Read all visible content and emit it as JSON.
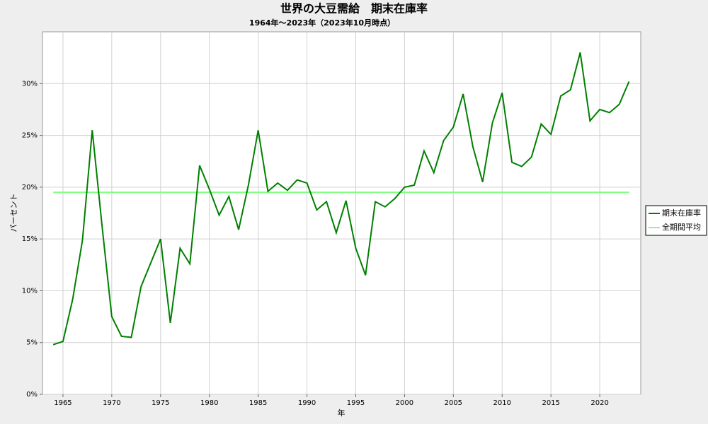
{
  "chart_data": {
    "type": "line",
    "title": "世界の大豆需給　期末在庫率",
    "subtitle": "1964年～2023年（2023年10月時点）",
    "x_label": "年",
    "y_label": "パーセント",
    "x": [
      1964,
      1965,
      1966,
      1967,
      1968,
      1969,
      1970,
      1971,
      1972,
      1973,
      1974,
      1975,
      1976,
      1977,
      1978,
      1979,
      1980,
      1981,
      1982,
      1983,
      1984,
      1985,
      1986,
      1987,
      1988,
      1989,
      1990,
      1991,
      1992,
      1993,
      1994,
      1995,
      1996,
      1997,
      1998,
      1999,
      2000,
      2001,
      2002,
      2003,
      2004,
      2005,
      2006,
      2007,
      2008,
      2009,
      2010,
      2011,
      2012,
      2013,
      2014,
      2015,
      2016,
      2017,
      2018,
      2019,
      2020,
      2021,
      2022,
      2023
    ],
    "series": [
      {
        "name": "期末在庫率",
        "color": "#008000",
        "width": 2,
        "values": [
          4.8,
          5.1,
          9.2,
          14.9,
          25.5,
          16.3,
          7.5,
          5.6,
          5.5,
          10.4,
          12.7,
          15.0,
          6.9,
          14.1,
          12.6,
          22.1,
          19.8,
          17.3,
          19.1,
          15.9,
          20.2,
          25.5,
          19.6,
          20.4,
          19.7,
          20.7,
          20.4,
          17.8,
          18.6,
          15.6,
          18.7,
          14.1,
          11.5,
          18.6,
          18.1,
          18.9,
          20.0,
          20.2,
          23.5,
          21.4,
          24.5,
          25.8,
          29.0,
          23.9,
          20.5,
          26.2,
          29.1,
          22.4,
          22.0,
          22.9,
          26.1,
          25.1,
          28.8,
          29.4,
          33.0,
          26.4,
          27.5,
          27.2,
          28.0,
          30.2
        ]
      },
      {
        "name": "全期間平均",
        "color": "#80ff80",
        "width": 2,
        "values": [
          19.5,
          19.5,
          19.5,
          19.5,
          19.5,
          19.5,
          19.5,
          19.5,
          19.5,
          19.5,
          19.5,
          19.5,
          19.5,
          19.5,
          19.5,
          19.5,
          19.5,
          19.5,
          19.5,
          19.5,
          19.5,
          19.5,
          19.5,
          19.5,
          19.5,
          19.5,
          19.5,
          19.5,
          19.5,
          19.5,
          19.5,
          19.5,
          19.5,
          19.5,
          19.5,
          19.5,
          19.5,
          19.5,
          19.5,
          19.5,
          19.5,
          19.5,
          19.5,
          19.5,
          19.5,
          19.5,
          19.5,
          19.5,
          19.5,
          19.5,
          19.5,
          19.5,
          19.5,
          19.5,
          19.5,
          19.5,
          19.5,
          19.5,
          19.5,
          19.5
        ]
      }
    ],
    "xlim": [
      1962.9,
      2024.2
    ],
    "xticks": [
      1965,
      1970,
      1975,
      1980,
      1985,
      1990,
      1995,
      2000,
      2005,
      2010,
      2015,
      2020
    ],
    "ylim": [
      0,
      35
    ],
    "yticks": [
      {
        "value": 0,
        "label": "0%"
      },
      {
        "value": 5,
        "label": "5%"
      },
      {
        "value": 10,
        "label": "10%"
      },
      {
        "value": 15,
        "label": "15%"
      },
      {
        "value": 20,
        "label": "20%"
      },
      {
        "value": 25,
        "label": "25%"
      },
      {
        "value": 30,
        "label": "30%"
      }
    ],
    "grid": true,
    "legend": "right"
  }
}
